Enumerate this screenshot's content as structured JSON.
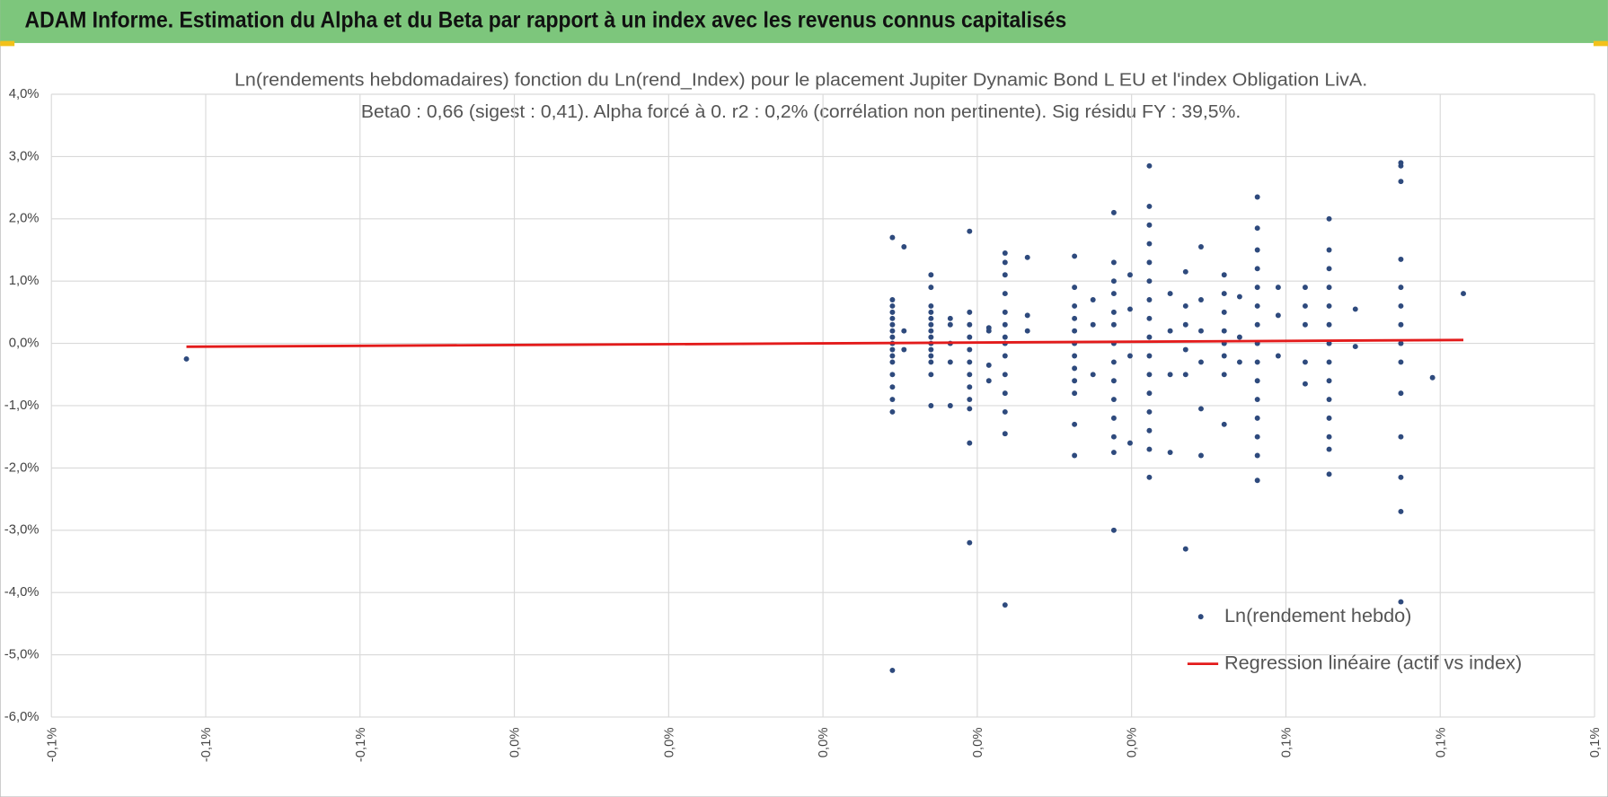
{
  "header": {
    "title": "ADAM Informe. Estimation du Alpha et du Beta par rapport à un index avec les revenus connus capitalisés"
  },
  "chart_data": {
    "type": "scatter",
    "title": "Ln(rendements hebdomadaires) fonction du Ln(rend_Index) pour le placement Jupiter Dynamic Bond L EU et l'index Obligation LivA.",
    "subtitle": "Beta0 : 0,66 (sigest : 0,41).  Alpha forcé à 0. r2 : 0,2% (corrélation non pertinente). Sig résidu FY : 39,5%.",
    "xlim": [
      -0.1,
      0.1
    ],
    "xticks": [
      {
        "value": -0.1,
        "label": "-0,1%"
      },
      {
        "value": -0.08,
        "label": "-0,1%"
      },
      {
        "value": -0.06,
        "label": "-0,1%"
      },
      {
        "value": -0.04,
        "label": "0,0%"
      },
      {
        "value": -0.02,
        "label": "0,0%"
      },
      {
        "value": 0,
        "label": "0,0%"
      },
      {
        "value": 0.02,
        "label": "0,0%"
      },
      {
        "value": 0.04,
        "label": "0,0%"
      },
      {
        "value": 0.06,
        "label": "0,1%"
      },
      {
        "value": 0.08,
        "label": "0,1%"
      },
      {
        "value": 0.1,
        "label": "0,1%"
      }
    ],
    "ylim": [
      -6,
      4
    ],
    "yticks": [
      {
        "value": -6,
        "label": "-6,0%"
      },
      {
        "value": -5,
        "label": "-5,0%"
      },
      {
        "value": -4,
        "label": "-4,0%"
      },
      {
        "value": -3,
        "label": "-3,0%"
      },
      {
        "value": -2,
        "label": "-2,0%"
      },
      {
        "value": -1,
        "label": "-1,0%"
      },
      {
        "value": 0,
        "label": "0,0%"
      },
      {
        "value": 1,
        "label": "1,0%"
      },
      {
        "value": 2,
        "label": "2,0%"
      },
      {
        "value": 3,
        "label": "3,0%"
      },
      {
        "value": 4,
        "label": "4,0%"
      }
    ],
    "grid": true,
    "legend": "lower right",
    "series": [
      {
        "name": "Ln(rendement hebdo)",
        "color": "#2e4a7d",
        "type": "scatter",
        "x": [
          0.009,
          0.009,
          0.009,
          0.009,
          0.009,
          0.009,
          0.009,
          0.009,
          0.009,
          0.009,
          0.009,
          0.009,
          0.009,
          0.009,
          0.009,
          0.009,
          0.009,
          0.0105,
          0.0105,
          0.0105,
          0.014,
          0.014,
          0.014,
          0.014,
          0.014,
          0.014,
          0.014,
          0.014,
          0.014,
          0.014,
          0.014,
          0.014,
          0.014,
          0.014,
          0.0165,
          0.0165,
          0.0165,
          0.0165,
          0.0165,
          0.019,
          0.019,
          0.019,
          0.019,
          0.019,
          0.019,
          0.019,
          0.019,
          0.019,
          0.019,
          0.019,
          0.019,
          0.0215,
          0.0215,
          0.0215,
          0.0215,
          0.0236,
          0.0236,
          0.0236,
          0.0236,
          0.0236,
          0.0236,
          0.0236,
          0.0236,
          0.0236,
          0.0236,
          0.0236,
          0.0236,
          0.0236,
          0.0236,
          0.0265,
          0.0265,
          0.0265,
          0.0326,
          0.0326,
          0.0326,
          0.0326,
          0.0326,
          0.0326,
          0.0326,
          0.0326,
          0.0326,
          0.0326,
          0.0326,
          0.0326,
          0.035,
          0.035,
          0.035,
          0.0377,
          0.0377,
          0.0377,
          0.0377,
          0.0377,
          0.0377,
          0.0377,
          0.0377,
          0.0377,
          0.0377,
          0.0377,
          0.0377,
          0.0377,
          0.0377,
          0.0398,
          0.0398,
          0.0398,
          0.0398,
          0.0423,
          0.0423,
          0.0423,
          0.0423,
          0.0423,
          0.0423,
          0.0423,
          0.0423,
          0.0423,
          0.0423,
          0.0423,
          0.0423,
          0.0423,
          0.0423,
          0.0423,
          0.0423,
          0.045,
          0.045,
          0.045,
          0.045,
          0.047,
          0.047,
          0.047,
          0.047,
          0.047,
          0.047,
          0.049,
          0.049,
          0.049,
          0.049,
          0.049,
          0.049,
          0.052,
          0.052,
          0.052,
          0.052,
          0.052,
          0.052,
          0.052,
          0.052,
          0.054,
          0.054,
          0.054,
          0.0563,
          0.0563,
          0.0563,
          0.0563,
          0.0563,
          0.0563,
          0.0563,
          0.0563,
          0.0563,
          0.0563,
          0.0563,
          0.0563,
          0.0563,
          0.0563,
          0.0563,
          0.059,
          0.059,
          0.059,
          0.0625,
          0.0625,
          0.0625,
          0.0625,
          0.0625,
          0.0656,
          0.0656,
          0.0656,
          0.0656,
          0.0656,
          0.0656,
          0.0656,
          0.0656,
          0.0656,
          0.0656,
          0.0656,
          0.0656,
          0.0656,
          0.0656,
          0.069,
          0.069,
          0.0749,
          0.0749,
          0.0749,
          0.0749,
          0.0749,
          0.0749,
          0.0749,
          0.0749,
          0.0749,
          0.0749,
          0.0749,
          0.0749,
          0.0749,
          0.0749,
          0.079,
          -0.0825,
          0.083
        ],
        "values": [
          1.7,
          0.7,
          0.6,
          0.5,
          0.4,
          0.3,
          0.2,
          0.1,
          0.0,
          -0.1,
          -0.2,
          -0.3,
          -0.5,
          -0.7,
          -0.9,
          -1.1,
          -5.25,
          1.55,
          0.2,
          -0.1,
          1.1,
          0.9,
          0.6,
          0.5,
          0.4,
          0.3,
          0.2,
          0.1,
          0,
          -0.1,
          -0.2,
          -0.3,
          -0.5,
          -1.0,
          0.4,
          0.3,
          0,
          -0.3,
          -1.0,
          1.8,
          0.5,
          0.3,
          0.1,
          -0.1,
          -0.3,
          -0.5,
          -0.7,
          -0.9,
          -1.05,
          -1.6,
          -3.2,
          0.2,
          -0.6,
          -0.35,
          0.25,
          1.45,
          1.3,
          1.1,
          0.8,
          0.5,
          0.3,
          0.1,
          0,
          -0.2,
          -0.5,
          -0.8,
          -1.1,
          -1.45,
          -4.2,
          1.38,
          0.45,
          0.2,
          1.4,
          0.9,
          0.6,
          0.4,
          0.2,
          0,
          -0.2,
          -0.4,
          -0.6,
          -0.8,
          -1.3,
          -1.8,
          0.7,
          0.3,
          -0.5,
          2.1,
          1.3,
          1.0,
          0.8,
          0.5,
          0.3,
          0,
          -0.3,
          -0.6,
          -0.9,
          -1.2,
          -1.5,
          -1.75,
          -3.0,
          1.1,
          0.55,
          -0.2,
          -1.6,
          2.85,
          2.2,
          1.9,
          1.6,
          1.3,
          1.0,
          0.7,
          0.4,
          0.1,
          -0.2,
          -0.5,
          -0.8,
          -1.1,
          -1.4,
          -1.7,
          -2.15,
          0.8,
          0.2,
          -0.5,
          -1.75,
          1.15,
          0.6,
          0.3,
          -0.1,
          -0.5,
          -3.3,
          1.55,
          0.7,
          0.2,
          -0.3,
          -1.05,
          -1.8,
          1.1,
          0.8,
          0.5,
          0.2,
          0,
          -0.2,
          -0.5,
          -1.3,
          0.75,
          0.1,
          -0.3,
          2.35,
          1.85,
          1.5,
          1.2,
          0.9,
          0.6,
          0.3,
          0,
          -0.3,
          -0.6,
          -0.9,
          -1.2,
          -1.5,
          -1.8,
          -2.2,
          0.9,
          0.45,
          -0.2,
          0.9,
          0.6,
          0.3,
          -0.3,
          -0.65,
          2.0,
          1.5,
          1.2,
          0.9,
          0.6,
          0.3,
          0,
          -0.3,
          -0.6,
          -0.9,
          -1.2,
          -1.5,
          -1.7,
          -2.1,
          0.55,
          -0.05,
          2.9,
          2.85,
          2.6,
          1.35,
          0.9,
          0.6,
          0.3,
          0,
          -0.3,
          -0.8,
          -1.5,
          -2.15,
          -2.7,
          -4.15,
          -0.55,
          -0.25,
          0.8
        ]
      },
      {
        "name": "Regression linéaire (actif vs index)",
        "color": "#e31b1b",
        "type": "line",
        "x": [
          -0.0825,
          0.083
        ],
        "values": [
          -0.054,
          0.055
        ]
      }
    ]
  }
}
